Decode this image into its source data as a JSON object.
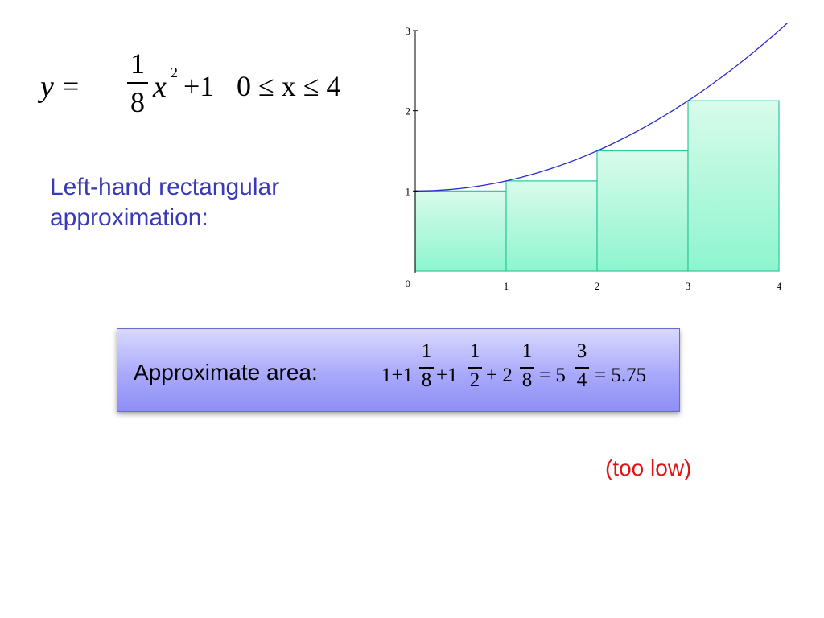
{
  "equation": {
    "y": "y",
    "equals": "=",
    "coef_num": "1",
    "coef_den": "8",
    "x": "x",
    "exponent": "2",
    "plus_one": "+1",
    "domain": "0 ≤ x ≤ 4"
  },
  "caption": "Left-hand rectangular approximation:",
  "chart_data": {
    "type": "bar",
    "function": "y = (1/8)x^2 + 1",
    "x_ticks": [
      "0",
      "1",
      "2",
      "3",
      "4"
    ],
    "y_ticks": [
      "1",
      "2",
      "3"
    ],
    "xlim": [
      0,
      4
    ],
    "ylim": [
      0,
      3
    ],
    "rectangles": [
      {
        "x0": 0,
        "x1": 1,
        "height": 1
      },
      {
        "x0": 1,
        "x1": 2,
        "height": 1.125
      },
      {
        "x0": 2,
        "x1": 3,
        "height": 1.5
      },
      {
        "x0": 3,
        "x1": 4,
        "height": 2.125
      }
    ],
    "curve_color": "#2a2ad0",
    "rect_fill_top": "#d9fbec",
    "rect_fill_bottom": "#8df5cf",
    "rect_stroke": "#2fc79b"
  },
  "area": {
    "label": "Approximate area:",
    "t1": "1+1",
    "f1_num": "1",
    "f1_den": "8",
    "t2": "+1",
    "f2_num": "1",
    "f2_den": "2",
    "t3": "+ 2",
    "f3_num": "1",
    "f3_den": "8",
    "t4": "= 5",
    "f4_num": "3",
    "f4_den": "4",
    "t5": "= 5.75"
  },
  "verdict": "(too low)"
}
